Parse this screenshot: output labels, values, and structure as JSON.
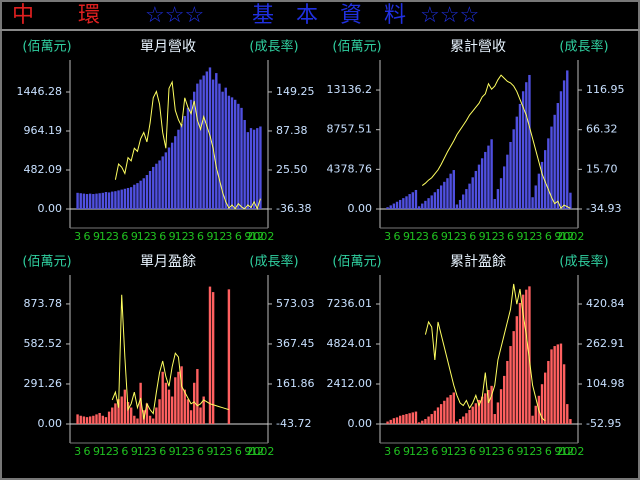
{
  "header": {
    "company": "中　　環",
    "stars_left": "☆☆☆",
    "title": "基　本　資　料",
    "stars_right": "☆☆☆"
  },
  "chart_data": [
    {
      "type": "combo",
      "title": "單月營收",
      "ylabel": "(佰萬元)",
      "y2label": "(成長率)",
      "categories": [
        "3",
        null,
        null,
        "6",
        null,
        null,
        "9",
        null,
        null,
        "12",
        null,
        null,
        "3",
        null,
        null,
        "6",
        null,
        null,
        "9",
        null,
        null,
        "12",
        null,
        null,
        "3",
        null,
        null,
        "6",
        null,
        null,
        "9",
        null,
        null,
        "12",
        null,
        null,
        "3",
        null,
        null,
        "6",
        null,
        null,
        "9",
        null,
        null,
        "12",
        null,
        null,
        "3",
        null,
        null,
        "6",
        null,
        null,
        "9",
        null,
        null,
        "12",
        "2002"
      ],
      "series": [
        {
          "type": "bar",
          "color": "#5050e0",
          "values": [
            200,
            195,
            190,
            185,
            190,
            185,
            190,
            195,
            200,
            210,
            205,
            215,
            220,
            230,
            240,
            250,
            260,
            270,
            300,
            320,
            350,
            380,
            420,
            470,
            520,
            560,
            600,
            650,
            700,
            760,
            820,
            900,
            980,
            1050,
            1150,
            1250,
            1350,
            1450,
            1550,
            1600,
            1650,
            1700,
            1750,
            1600,
            1680,
            1550,
            1450,
            1500,
            1400,
            1380,
            1350,
            1300,
            1250,
            1100,
            950,
            1000,
            980,
            1000,
            1020
          ]
        },
        {
          "type": "line",
          "axis": "y2",
          "color": "#ffff60",
          "values": [
            null,
            null,
            null,
            null,
            null,
            null,
            null,
            null,
            null,
            null,
            null,
            null,
            10,
            35,
            30,
            20,
            45,
            40,
            60,
            55,
            75,
            85,
            70,
            100,
            140,
            150,
            130,
            85,
            60,
            155,
            165,
            120,
            105,
            95,
            140,
            125,
            115,
            135,
            105,
            90,
            110,
            95,
            80,
            60,
            30,
            10,
            -10,
            -25,
            -35,
            -30,
            -36,
            -28,
            -33,
            -36,
            -30,
            -34,
            -25,
            -36,
            -20
          ]
        }
      ],
      "ylim": [
        0,
        1780
      ],
      "yticks": [
        {
          "value": 0,
          "label": "0.00"
        },
        482.09,
        964.19,
        1446.28
      ],
      "y2lim": [
        -36.38,
        192
      ],
      "y2ticks": [
        -36.38,
        {
          "value": 25.5,
          "label": "25.50"
        },
        87.38,
        149.25
      ]
    },
    {
      "type": "combo",
      "title": "累計營收",
      "ylabel": "(佰萬元)",
      "y2label": "(成長率)",
      "categories": [
        "3",
        null,
        null,
        "6",
        null,
        null,
        "9",
        null,
        null,
        "12",
        null,
        null,
        "3",
        null,
        null,
        "6",
        null,
        null,
        "9",
        null,
        null,
        "12",
        null,
        null,
        "3",
        null,
        null,
        "6",
        null,
        null,
        "9",
        null,
        null,
        "12",
        null,
        null,
        "3",
        null,
        null,
        "6",
        null,
        null,
        "9",
        null,
        null,
        "12",
        null,
        null,
        "3",
        null,
        null,
        "6",
        null,
        null,
        "9",
        null,
        null,
        "12",
        "2002"
      ],
      "series": [
        {
          "type": "bar",
          "color": "#5050e0",
          "values": [
            200,
            400,
            600,
            800,
            1000,
            1200,
            1400,
            1650,
            1850,
            2100,
            300,
            600,
            900,
            1200,
            1500,
            1850,
            2200,
            2600,
            3000,
            3400,
            3900,
            4300,
            500,
            1000,
            1600,
            2200,
            2800,
            3500,
            4200,
            4900,
            5600,
            6300,
            7000,
            7700,
            1100,
            2200,
            3400,
            4700,
            6000,
            7400,
            8800,
            10200,
            11600,
            13000,
            14000,
            14800,
            1300,
            2600,
            3900,
            5200,
            6500,
            7800,
            9100,
            10400,
            11700,
            13000,
            14200,
            15300,
            1800
          ]
        },
        {
          "type": "line",
          "axis": "y2",
          "color": "#ffff60",
          "values": [
            null,
            null,
            null,
            null,
            null,
            null,
            null,
            null,
            null,
            null,
            null,
            -5,
            -2,
            2,
            5,
            10,
            15,
            22,
            30,
            38,
            45,
            52,
            60,
            66,
            72,
            78,
            85,
            90,
            95,
            100,
            108,
            112,
            125,
            118,
            122,
            130,
            136,
            132,
            128,
            126,
            122,
            115,
            105,
            95,
            85,
            70,
            55,
            40,
            25,
            10,
            0,
            -10,
            -20,
            -28,
            -25,
            -34,
            -30,
            -32,
            -34
          ]
        }
      ],
      "ylim": [
        0,
        15900
      ],
      "yticks": [
        {
          "value": 0,
          "label": "0.00"
        },
        4378.76,
        8757.51,
        13136.2
      ],
      "y2lim": [
        -34.93,
        148.9
      ],
      "y2ticks": [
        -34.93,
        {
          "value": 15.7,
          "label": "15.70"
        },
        66.32,
        116.95
      ]
    },
    {
      "type": "combo",
      "title": "單月盈餘",
      "ylabel": "(佰萬元)",
      "y2label": "(成長率)",
      "categories": [
        "3",
        null,
        null,
        "6",
        null,
        null,
        "9",
        null,
        null,
        "12",
        null,
        null,
        "3",
        null,
        null,
        "6",
        null,
        null,
        "9",
        null,
        null,
        "12",
        null,
        null,
        "3",
        null,
        null,
        "6",
        null,
        null,
        "9",
        null,
        null,
        "12",
        null,
        null,
        "3",
        null,
        null,
        "6",
        null,
        null,
        "9",
        null,
        null,
        "12",
        null,
        null,
        "3",
        null,
        null,
        "6",
        null,
        null,
        "9",
        null,
        null,
        "12",
        "2002"
      ],
      "series": [
        {
          "type": "bar",
          "color": "#ff6060",
          "values": [
            70,
            60,
            55,
            50,
            55,
            60,
            70,
            80,
            60,
            50,
            90,
            120,
            150,
            180,
            200,
            250,
            160,
            120,
            60,
            40,
            300,
            100,
            150,
            60,
            40,
            120,
            180,
            380,
            300,
            250,
            200,
            340,
            380,
            420,
            250,
            180,
            100,
            300,
            400,
            120,
            200,
            null,
            1000,
            960,
            null,
            null,
            null,
            null,
            980,
            null,
            null,
            null,
            null,
            null,
            null,
            null,
            null,
            null,
            null
          ]
        },
        {
          "type": "line",
          "axis": "y2",
          "color": "#ffff60",
          "values": [
            null,
            null,
            null,
            null,
            null,
            null,
            null,
            null,
            null,
            null,
            null,
            80,
            120,
            40,
            620,
            300,
            30,
            60,
            120,
            40,
            90,
            -20,
            60,
            30,
            10,
            120,
            220,
            280,
            200,
            150,
            250,
            320,
            300,
            150,
            120,
            90,
            60,
            70,
            50,
            60,
            80,
            70,
            60,
            55,
            50,
            45,
            40,
            35,
            30,
            null,
            null,
            null,
            null,
            null,
            null,
            null,
            null,
            null,
            null
          ]
        }
      ],
      "ylim": [
        0,
        1048
      ],
      "yticks": [
        {
          "value": 0,
          "label": "0.00"
        },
        291.26,
        582.52,
        873.78
      ],
      "y2lim": [
        -43.72,
        696
      ],
      "y2ticks": [
        -43.72,
        161.86,
        367.45,
        573.03
      ]
    },
    {
      "type": "combo",
      "title": "累計盈餘",
      "ylabel": "(佰萬元)",
      "y2label": "(成長率)",
      "categories": [
        "3",
        null,
        null,
        "6",
        null,
        null,
        "9",
        null,
        null,
        "12",
        null,
        null,
        "3",
        null,
        null,
        "6",
        null,
        null,
        "9",
        null,
        null,
        "12",
        null,
        null,
        "3",
        null,
        null,
        "6",
        null,
        null,
        "9",
        null,
        null,
        "12",
        null,
        null,
        "3",
        null,
        null,
        "6",
        null,
        null,
        "9",
        null,
        null,
        "12",
        null,
        null,
        "3",
        null,
        null,
        "6",
        null,
        null,
        "9",
        null,
        null,
        "12",
        "2002"
      ],
      "series": [
        {
          "type": "bar",
          "color": "#ff6060",
          "values": [
            150,
            250,
            350,
            400,
            500,
            550,
            600,
            650,
            700,
            750,
            100,
            200,
            300,
            450,
            600,
            800,
            1000,
            1200,
            1400,
            1600,
            1750,
            1900,
            150,
            300,
            450,
            650,
            850,
            1050,
            1250,
            1450,
            1650,
            1850,
            2050,
            2300,
            600,
            1300,
            2100,
            2900,
            3800,
            4700,
            5600,
            6500,
            7300,
            7800,
            8100,
            8300,
            500,
            1100,
            1700,
            2400,
            3100,
            3800,
            4500,
            4700,
            4800,
            4850,
            3600,
            1200,
            300
          ]
        },
        {
          "type": "line",
          "axis": "y2",
          "color": "#ffff60",
          "values": [
            null,
            null,
            null,
            null,
            null,
            null,
            null,
            null,
            null,
            null,
            null,
            null,
            300,
            350,
            330,
            200,
            350,
            300,
            250,
            200,
            150,
            100,
            60,
            30,
            20,
            40,
            10,
            30,
            60,
            20,
            50,
            150,
            30,
            60,
            100,
            200,
            250,
            300,
            350,
            400,
            500,
            420,
            480,
            380,
            300,
            200,
            100,
            50,
            0,
            -30,
            -40,
            null,
            null,
            null,
            null,
            null,
            null,
            null,
            null
          ]
        }
      ],
      "ylim": [
        0,
        8683
      ],
      "yticks": [
        {
          "value": 0,
          "label": "0.00"
        },
        {
          "value": 2412,
          "label": "2412.00"
        },
        4824.01,
        7236.01
      ],
      "y2lim": [
        -52.95,
        515.6
      ],
      "y2ticks": [
        -52.95,
        104.98,
        262.91,
        420.84
      ]
    }
  ]
}
